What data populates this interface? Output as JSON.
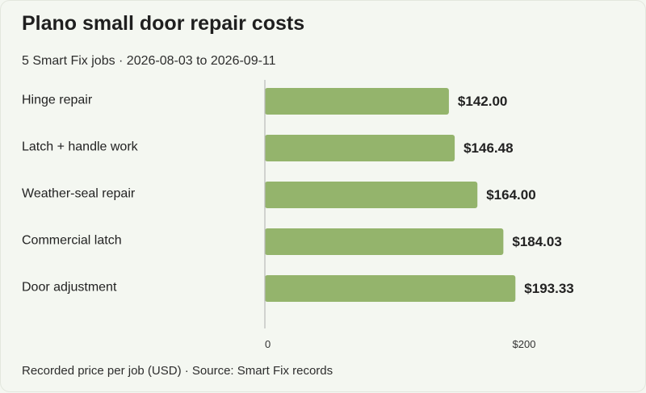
{
  "header": {
    "title": "Plano small door repair costs",
    "subtitle": "5 Smart Fix jobs · 2026-08-03 to 2026-09-11"
  },
  "footer": {
    "note": "Recorded price per job (USD) · Source: Smart Fix records"
  },
  "colors": {
    "bar": "#94b46c",
    "axis": "#b9b9b9",
    "background": "#f4f7f1"
  },
  "chart_data": {
    "type": "bar",
    "orientation": "horizontal",
    "title": "Plano small door repair costs",
    "subtitle": "5 Smart Fix jobs · 2026-08-03 to 2026-09-11",
    "categories": [
      "Hinge repair",
      "Latch + handle work",
      "Weather-seal repair",
      "Commercial latch",
      "Door adjustment"
    ],
    "values": [
      142.0,
      146.48,
      164.0,
      184.03,
      193.33
    ],
    "value_labels": [
      "$142.00",
      "$146.48",
      "$164.00",
      "$184.03",
      "$193.33"
    ],
    "xlim": [
      0,
      200
    ],
    "ticks": [
      0,
      200
    ],
    "tick_labels": [
      "0",
      "$200"
    ],
    "grid": false,
    "legend": "none"
  }
}
